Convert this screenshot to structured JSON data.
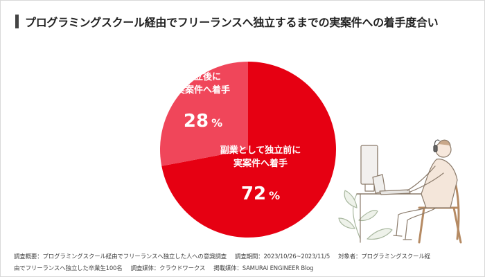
{
  "title": "プログラミングスクール経由でフリーランスへ独立するまでの実案件への着手度合い",
  "colors": {
    "slice_main": "#e60012",
    "slice_secondary": "#f0465a",
    "label_text": "#ffffff",
    "title_bar": "#444444"
  },
  "chart_data": {
    "type": "pie",
    "title": "プログラミングスクール経由でフリーランスへ独立するまでの実案件への着手度合い",
    "slices": [
      {
        "label": [
          "副業として独立前に",
          "実案件へ着手"
        ],
        "value": 72,
        "value_text": "72",
        "unit": "%",
        "color": "#e60012"
      },
      {
        "label": [
          "独立後に",
          "実案件へ着手"
        ],
        "value": 28,
        "value_text": "28",
        "unit": "%",
        "color": "#f0465a"
      }
    ]
  },
  "footnote": {
    "line1": {
      "overview": "調査概要：プログラミングスクール経由でフリーランスへ独立した人への意識調査",
      "period": "調査期間：2023/10/26~2023/11/5",
      "target": "対象者：プログラミングスクール経"
    },
    "line2": {
      "target_cont": "由でフリーランスへ独立した卒業生100名",
      "media": "調査媒体：クラウドワークス",
      "published": "掲載媒体：SAMURAI ENGINEER Blog"
    }
  },
  "illustration": {
    "icon": "person-at-computer-illustration"
  }
}
